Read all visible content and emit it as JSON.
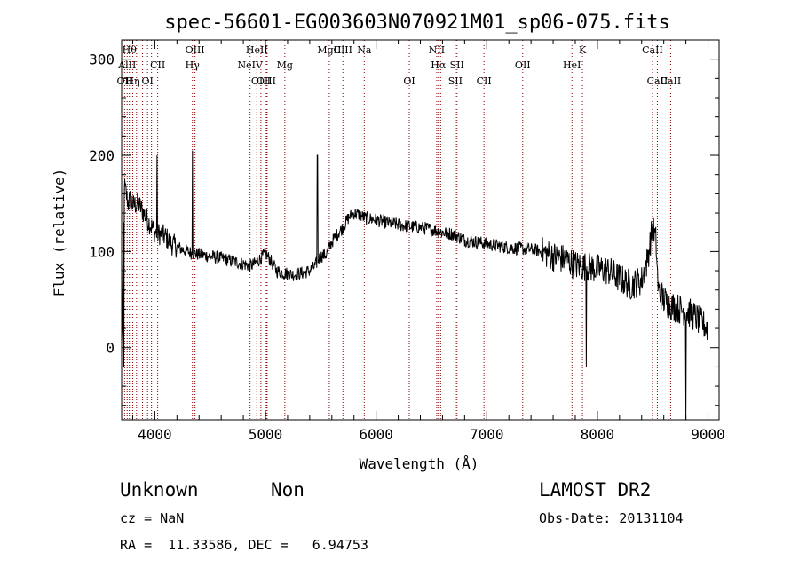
{
  "chart_data": {
    "type": "line",
    "title": "spec-56601-EG003603N070921M01_sp06-075.fits",
    "xlabel": "Wavelength (Å)",
    "ylabel": "Flux (relative)",
    "xlim": [
      3700,
      9100
    ],
    "ylim": [
      -75,
      320
    ],
    "x_ticks": [
      4000,
      5000,
      6000,
      7000,
      8000,
      9000
    ],
    "y_ticks": [
      0,
      100,
      200,
      300
    ],
    "grid": false,
    "spectrum_anchor_points": [
      [
        3700,
        0
      ],
      [
        3710,
        60
      ],
      [
        3720,
        170
      ],
      [
        3740,
        160
      ],
      [
        3760,
        150
      ],
      [
        3780,
        155
      ],
      [
        3800,
        148
      ],
      [
        3850,
        150
      ],
      [
        3900,
        140
      ],
      [
        3950,
        130
      ],
      [
        4000,
        120
      ],
      [
        4050,
        118
      ],
      [
        4100,
        115
      ],
      [
        4150,
        108
      ],
      [
        4200,
        105
      ],
      [
        4250,
        102
      ],
      [
        4300,
        100
      ],
      [
        4340,
        98
      ],
      [
        4400,
        97
      ],
      [
        4500,
        95
      ],
      [
        4600,
        93
      ],
      [
        4700,
        90
      ],
      [
        4800,
        87
      ],
      [
        4860,
        85
      ],
      [
        4900,
        87
      ],
      [
        4950,
        92
      ],
      [
        5000,
        98
      ],
      [
        5050,
        90
      ],
      [
        5100,
        80
      ],
      [
        5150,
        78
      ],
      [
        5200,
        77
      ],
      [
        5250,
        76
      ],
      [
        5300,
        77
      ],
      [
        5350,
        78
      ],
      [
        5400,
        80
      ],
      [
        5450,
        85
      ],
      [
        5480,
        92
      ],
      [
        5500,
        95
      ],
      [
        5550,
        97
      ],
      [
        5600,
        110
      ],
      [
        5650,
        118
      ],
      [
        5700,
        125
      ],
      [
        5750,
        135
      ],
      [
        5800,
        140
      ],
      [
        5850,
        138
      ],
      [
        5900,
        135
      ],
      [
        6000,
        133
      ],
      [
        6100,
        130
      ],
      [
        6200,
        128
      ],
      [
        6300,
        126
      ],
      [
        6400,
        125
      ],
      [
        6500,
        123
      ],
      [
        6600,
        120
      ],
      [
        6700,
        118
      ],
      [
        6800,
        112
      ],
      [
        6900,
        110
      ],
      [
        7000,
        108
      ],
      [
        7100,
        106
      ],
      [
        7200,
        104
      ],
      [
        7300,
        103
      ],
      [
        7400,
        102
      ],
      [
        7500,
        100
      ],
      [
        7600,
        95
      ],
      [
        7700,
        92
      ],
      [
        7800,
        86
      ],
      [
        7900,
        84
      ],
      [
        8000,
        82
      ],
      [
        8100,
        80
      ],
      [
        8200,
        72
      ],
      [
        8300,
        65
      ],
      [
        8400,
        70
      ],
      [
        8450,
        90
      ],
      [
        8500,
        125
      ],
      [
        8530,
        110
      ],
      [
        8550,
        60
      ],
      [
        8600,
        50
      ],
      [
        8650,
        45
      ],
      [
        8700,
        42
      ],
      [
        8750,
        40
      ],
      [
        8800,
        38
      ],
      [
        8850,
        35
      ],
      [
        8900,
        30
      ],
      [
        8950,
        25
      ],
      [
        9000,
        20
      ]
    ],
    "spectrum_spikes": [
      {
        "x": 3720,
        "y": -20
      },
      {
        "x": 4020,
        "y": 200
      },
      {
        "x": 4340,
        "y": 205
      },
      {
        "x": 5470,
        "y": 200
      },
      {
        "x": 7900,
        "y": -20
      },
      {
        "x": 8800,
        "y": -75
      }
    ],
    "line_markers": [
      {
        "x": 3727,
        "label": "OII",
        "row": 2
      },
      {
        "x": 3750,
        "label": "AlII",
        "row": 1
      },
      {
        "x": 3770,
        "label": "Hθ",
        "row": 0
      },
      {
        "x": 3800,
        "label": "Hη",
        "row": 2
      },
      {
        "x": 3835,
        "label": "",
        "row": 2
      },
      {
        "x": 3889,
        "label": "",
        "row": 1
      },
      {
        "x": 3934,
        "label": "OI",
        "row": 2
      },
      {
        "x": 3970,
        "label": "",
        "row": 2
      },
      {
        "x": 4026,
        "label": "CII",
        "row": 1
      },
      {
        "x": 4340,
        "label": "Hγ",
        "row": 1
      },
      {
        "x": 4363,
        "label": "OIII",
        "row": 0
      },
      {
        "x": 4861,
        "label": "NeIV",
        "row": 1
      },
      {
        "x": 4922,
        "label": "HeII",
        "row": 0
      },
      {
        "x": 4959,
        "label": "OIII",
        "row": 2
      },
      {
        "x": 5007,
        "label": "OIII",
        "row": 2
      },
      {
        "x": 5015,
        "label": "",
        "row": 0
      },
      {
        "x": 5175,
        "label": "Mg",
        "row": 1
      },
      {
        "x": 5577,
        "label": "MgII",
        "row": 0
      },
      {
        "x": 5700,
        "label": "CIII",
        "row": 0
      },
      {
        "x": 5893,
        "label": "Na",
        "row": 0
      },
      {
        "x": 6300,
        "label": "OI",
        "row": 2
      },
      {
        "x": 6548,
        "label": "NII",
        "row": 0
      },
      {
        "x": 6563,
        "label": "Hα",
        "row": 1
      },
      {
        "x": 6583,
        "label": "",
        "row": 0
      },
      {
        "x": 6716,
        "label": "SII",
        "row": 2
      },
      {
        "x": 6731,
        "label": "SII",
        "row": 1
      },
      {
        "x": 6975,
        "label": "CII",
        "row": 2
      },
      {
        "x": 7325,
        "label": "OII",
        "row": 1
      },
      {
        "x": 7770,
        "label": "HeI",
        "row": 1
      },
      {
        "x": 7865,
        "label": "K",
        "row": 0
      },
      {
        "x": 8498,
        "label": "CaII",
        "row": 0
      },
      {
        "x": 8542,
        "label": "CaII",
        "row": 2
      },
      {
        "x": 8662,
        "label": "CaII",
        "row": 2
      }
    ]
  },
  "info": {
    "class_label": "Unknown",
    "subclass_label": "Non",
    "survey": "LAMOST DR2",
    "cz": "cz = NaN",
    "obs_date": "Obs-Date: 20131104",
    "coords": "RA =  11.33586, DEC =   6.94753"
  },
  "colors": {
    "spectrum": "#000000",
    "marker_line": "#8b0000",
    "frame": "#000000"
  }
}
